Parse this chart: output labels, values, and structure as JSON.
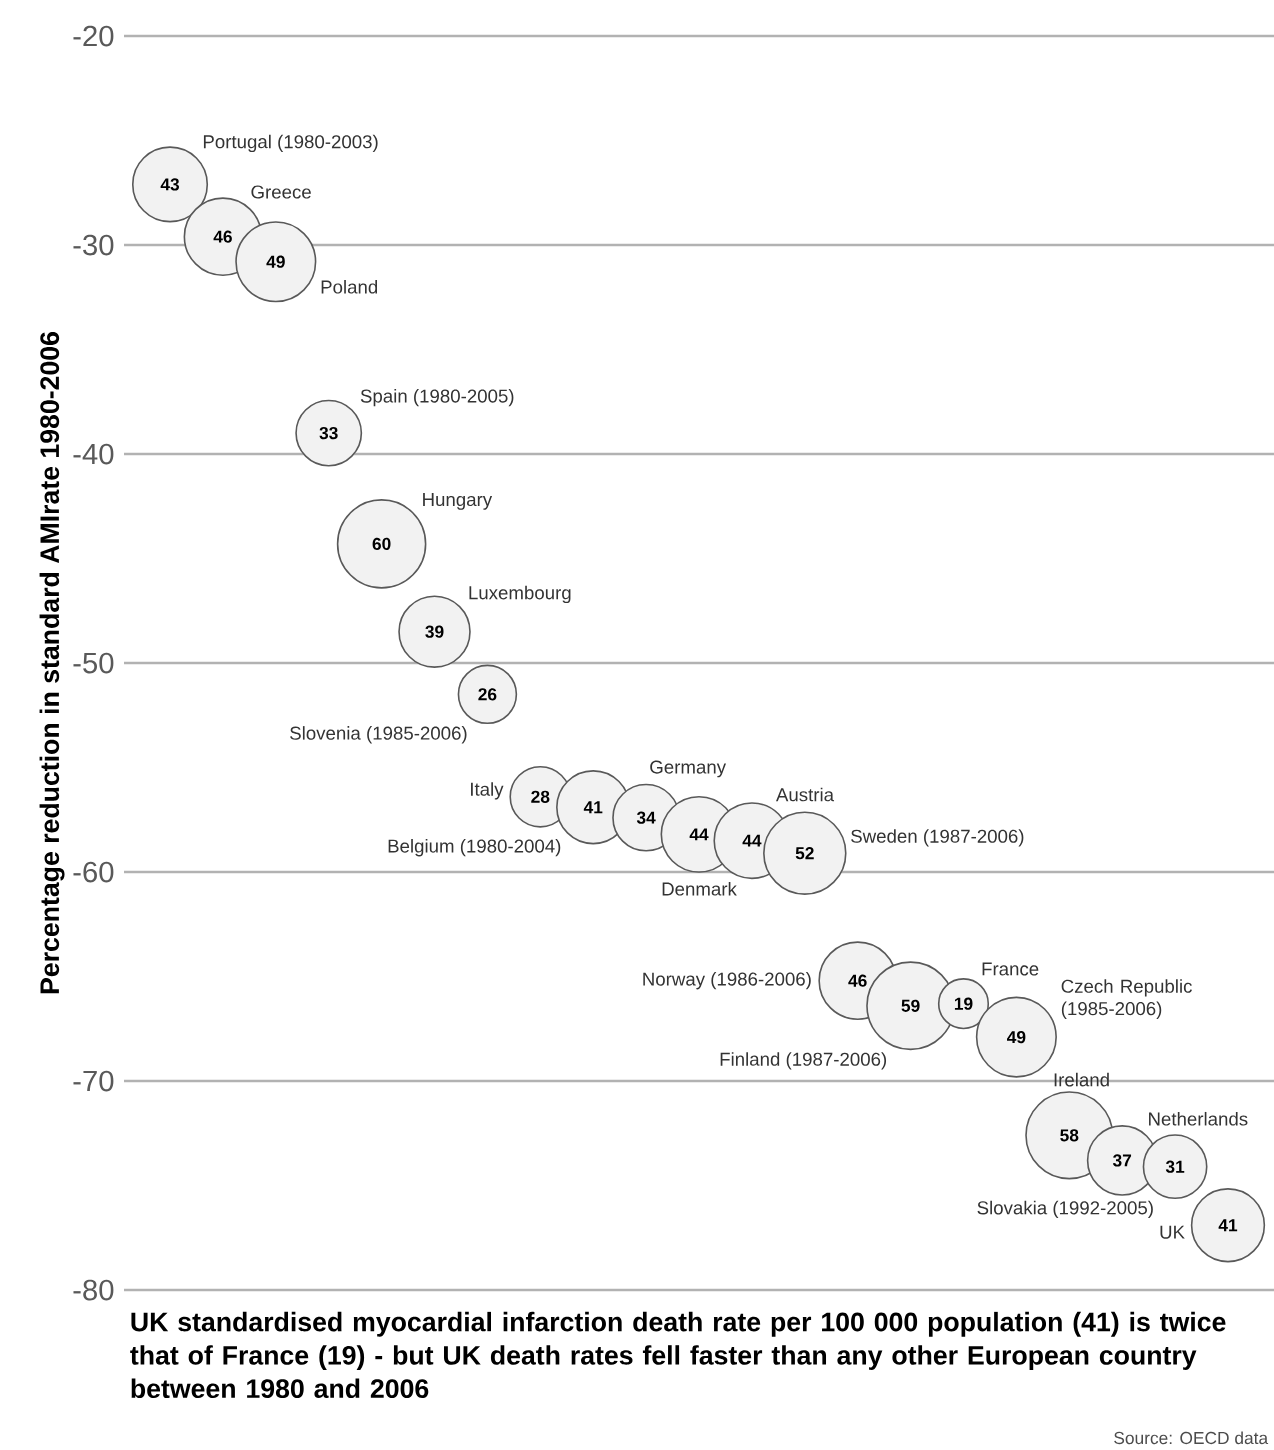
{
  "chart_data": {
    "type": "bubble",
    "title": "UK standardised myocardial infarction death rate per 100 000 population (41) is twice that of France (19) - but UK death rates fell faster than any other European country between 1980 and 2006",
    "ylabel": "Percentage reduction in standard AMIrate 1980-2006",
    "categories": [
      null,
      null,
      null,
      null,
      null,
      null,
      null,
      null,
      null,
      null,
      null,
      null,
      null,
      null,
      null,
      null,
      null,
      null,
      null,
      null,
      null
    ],
    "color": "#f2f2f2",
    "series": [
      {
        "name": "Portugal (1980-2003)",
        "values": [
          -27.1,
          null,
          null,
          null,
          null,
          null,
          null,
          null,
          null,
          null,
          null,
          null,
          null,
          null,
          null,
          null,
          null,
          null,
          null,
          null,
          null
        ],
        "sizes": [
          0.717,
          null,
          null,
          null,
          null,
          null,
          null,
          null,
          null,
          null,
          null,
          null,
          null,
          null,
          null,
          null,
          null,
          null,
          null,
          null,
          null
        ]
      },
      {
        "name": "Greece",
        "values": [
          null,
          -29.6,
          null,
          null,
          null,
          null,
          null,
          null,
          null,
          null,
          null,
          null,
          null,
          null,
          null,
          null,
          null,
          null,
          null,
          null,
          null
        ],
        "sizes": [
          null,
          0.767,
          null,
          null,
          null,
          null,
          null,
          null,
          null,
          null,
          null,
          null,
          null,
          null,
          null,
          null,
          null,
          null,
          null,
          null,
          null
        ]
      },
      {
        "name": "Poland",
        "values": [
          null,
          null,
          -30.8,
          null,
          null,
          null,
          null,
          null,
          null,
          null,
          null,
          null,
          null,
          null,
          null,
          null,
          null,
          null,
          null,
          null,
          null
        ],
        "sizes": [
          null,
          null,
          0.817,
          null,
          null,
          null,
          null,
          null,
          null,
          null,
          null,
          null,
          null,
          null,
          null,
          null,
          null,
          null,
          null,
          null,
          null
        ]
      },
      {
        "name": "Spain (1980-2005)",
        "values": [
          null,
          null,
          null,
          -39.0,
          null,
          null,
          null,
          null,
          null,
          null,
          null,
          null,
          null,
          null,
          null,
          null,
          null,
          null,
          null,
          null,
          null
        ],
        "sizes": [
          null,
          null,
          null,
          0.55,
          null,
          null,
          null,
          null,
          null,
          null,
          null,
          null,
          null,
          null,
          null,
          null,
          null,
          null,
          null,
          null,
          null
        ]
      },
      {
        "name": "Hungary",
        "values": [
          null,
          null,
          null,
          null,
          -44.3,
          null,
          null,
          null,
          null,
          null,
          null,
          null,
          null,
          null,
          null,
          null,
          null,
          null,
          null,
          null,
          null
        ],
        "sizes": [
          null,
          null,
          null,
          null,
          1,
          null,
          null,
          null,
          null,
          null,
          null,
          null,
          null,
          null,
          null,
          null,
          null,
          null,
          null,
          null,
          null
        ]
      },
      {
        "name": "Luxembourg",
        "values": [
          null,
          null,
          null,
          null,
          null,
          -48.5,
          null,
          null,
          null,
          null,
          null,
          null,
          null,
          null,
          null,
          null,
          null,
          null,
          null,
          null,
          null
        ],
        "sizes": [
          null,
          null,
          null,
          null,
          null,
          0.65,
          null,
          null,
          null,
          null,
          null,
          null,
          null,
          null,
          null,
          null,
          null,
          null,
          null,
          null,
          null
        ]
      },
      {
        "name": "Slovenia (1985-2006)",
        "values": [
          null,
          null,
          null,
          null,
          null,
          null,
          -51.5,
          null,
          null,
          null,
          null,
          null,
          null,
          null,
          null,
          null,
          null,
          null,
          null,
          null,
          null
        ],
        "sizes": [
          null,
          null,
          null,
          null,
          null,
          null,
          0.433,
          null,
          null,
          null,
          null,
          null,
          null,
          null,
          null,
          null,
          null,
          null,
          null,
          null,
          null
        ]
      },
      {
        "name": "Italy",
        "values": [
          null,
          null,
          null,
          null,
          null,
          null,
          null,
          -56.4,
          null,
          null,
          null,
          null,
          null,
          null,
          null,
          null,
          null,
          null,
          null,
          null,
          null
        ],
        "sizes": [
          null,
          null,
          null,
          null,
          null,
          null,
          null,
          0.467,
          null,
          null,
          null,
          null,
          null,
          null,
          null,
          null,
          null,
          null,
          null,
          null,
          null
        ]
      },
      {
        "name": "Belgium (1980-2004)",
        "values": [
          null,
          null,
          null,
          null,
          null,
          null,
          null,
          null,
          -56.9,
          null,
          null,
          null,
          null,
          null,
          null,
          null,
          null,
          null,
          null,
          null,
          null
        ],
        "sizes": [
          null,
          null,
          null,
          null,
          null,
          null,
          null,
          null,
          0.683,
          null,
          null,
          null,
          null,
          null,
          null,
          null,
          null,
          null,
          null,
          null,
          null
        ]
      },
      {
        "name": "Germany",
        "values": [
          null,
          null,
          null,
          null,
          null,
          null,
          null,
          null,
          null,
          -57.4,
          null,
          null,
          null,
          null,
          null,
          null,
          null,
          null,
          null,
          null,
          null
        ],
        "sizes": [
          null,
          null,
          null,
          null,
          null,
          null,
          null,
          null,
          null,
          0.567,
          null,
          null,
          null,
          null,
          null,
          null,
          null,
          null,
          null,
          null,
          null
        ]
      },
      {
        "name": "Denmark",
        "values": [
          null,
          null,
          null,
          null,
          null,
          null,
          null,
          null,
          null,
          null,
          -58.2,
          null,
          null,
          null,
          null,
          null,
          null,
          null,
          null,
          null,
          null
        ],
        "sizes": [
          null,
          null,
          null,
          null,
          null,
          null,
          null,
          null,
          null,
          null,
          0.733,
          null,
          null,
          null,
          null,
          null,
          null,
          null,
          null,
          null,
          null
        ]
      },
      {
        "name": "Austria",
        "values": [
          null,
          null,
          null,
          null,
          null,
          null,
          null,
          null,
          null,
          null,
          null,
          -58.5,
          null,
          null,
          null,
          null,
          null,
          null,
          null,
          null,
          null
        ],
        "sizes": [
          null,
          null,
          null,
          null,
          null,
          null,
          null,
          null,
          null,
          null,
          null,
          0.733,
          null,
          null,
          null,
          null,
          null,
          null,
          null,
          null,
          null
        ]
      },
      {
        "name": "Sweden (1987-2006)",
        "values": [
          null,
          null,
          null,
          null,
          null,
          null,
          null,
          null,
          null,
          null,
          null,
          null,
          -59.1,
          null,
          null,
          null,
          null,
          null,
          null,
          null,
          null
        ],
        "sizes": [
          null,
          null,
          null,
          null,
          null,
          null,
          null,
          null,
          null,
          null,
          null,
          null,
          0.867,
          null,
          null,
          null,
          null,
          null,
          null,
          null,
          null
        ]
      },
      {
        "name": "Norway (1986-2006)",
        "values": [
          null,
          null,
          null,
          null,
          null,
          null,
          null,
          null,
          null,
          null,
          null,
          null,
          null,
          -65.2,
          null,
          null,
          null,
          null,
          null,
          null,
          null
        ],
        "sizes": [
          null,
          null,
          null,
          null,
          null,
          null,
          null,
          null,
          null,
          null,
          null,
          null,
          null,
          0.767,
          null,
          null,
          null,
          null,
          null,
          null,
          null
        ]
      },
      {
        "name": "Finland (1987-2006)",
        "values": [
          null,
          null,
          null,
          null,
          null,
          null,
          null,
          null,
          null,
          null,
          null,
          null,
          null,
          null,
          -66.4,
          null,
          null,
          null,
          null,
          null,
          null
        ],
        "sizes": [
          null,
          null,
          null,
          null,
          null,
          null,
          null,
          null,
          null,
          null,
          null,
          null,
          null,
          null,
          0.983,
          null,
          null,
          null,
          null,
          null,
          null
        ]
      },
      {
        "name": "France",
        "values": [
          null,
          null,
          null,
          null,
          null,
          null,
          null,
          null,
          null,
          null,
          null,
          null,
          null,
          null,
          null,
          -66.3,
          null,
          null,
          null,
          null,
          null
        ],
        "sizes": [
          null,
          null,
          null,
          null,
          null,
          null,
          null,
          null,
          null,
          null,
          null,
          null,
          null,
          null,
          null,
          0.317,
          null,
          null,
          null,
          null,
          null
        ]
      },
      {
        "name": "Czech Republic (1985-2006)",
        "values": [
          null,
          null,
          null,
          null,
          null,
          null,
          null,
          null,
          null,
          null,
          null,
          null,
          null,
          null,
          null,
          null,
          -67.9,
          null,
          null,
          null,
          null
        ],
        "sizes": [
          null,
          null,
          null,
          null,
          null,
          null,
          null,
          null,
          null,
          null,
          null,
          null,
          null,
          null,
          null,
          null,
          0.817,
          null,
          null,
          null,
          null
        ]
      },
      {
        "name": "Ireland",
        "values": [
          null,
          null,
          null,
          null,
          null,
          null,
          null,
          null,
          null,
          null,
          null,
          null,
          null,
          null,
          null,
          null,
          null,
          -72.6,
          null,
          null,
          null
        ],
        "sizes": [
          null,
          null,
          null,
          null,
          null,
          null,
          null,
          null,
          null,
          null,
          null,
          null,
          null,
          null,
          null,
          null,
          null,
          0.967,
          null,
          null,
          null
        ]
      },
      {
        "name": "Netherlands",
        "values": [
          null,
          null,
          null,
          null,
          null,
          null,
          null,
          null,
          null,
          null,
          null,
          null,
          null,
          null,
          null,
          null,
          null,
          null,
          -73.8,
          null,
          null
        ],
        "sizes": [
          null,
          null,
          null,
          null,
          null,
          null,
          null,
          null,
          null,
          null,
          null,
          null,
          null,
          null,
          null,
          null,
          null,
          null,
          0.617,
          null,
          null
        ]
      },
      {
        "name": "Slovakia (1992-2005)",
        "values": [
          null,
          null,
          null,
          null,
          null,
          null,
          null,
          null,
          null,
          null,
          null,
          null,
          null,
          null,
          null,
          null,
          null,
          null,
          null,
          -74.1,
          null
        ],
        "sizes": [
          null,
          null,
          null,
          null,
          null,
          null,
          null,
          null,
          null,
          null,
          null,
          null,
          null,
          null,
          null,
          null,
          null,
          null,
          null,
          0.517,
          null
        ]
      },
      {
        "name": "UK",
        "values": [
          null,
          null,
          null,
          null,
          null,
          null,
          null,
          null,
          null,
          null,
          null,
          null,
          null,
          null,
          null,
          null,
          null,
          null,
          null,
          null,
          -76.9
        ],
        "sizes": [
          null,
          null,
          null,
          null,
          null,
          null,
          null,
          null,
          null,
          null,
          null,
          null,
          null,
          null,
          null,
          null,
          null,
          null,
          null,
          null,
          0.683
        ]
      }
    ],
    "ylim": [
      -80,
      -20
    ],
    "yticks": [
      -80,
      -70,
      -60,
      -50,
      -40,
      -30,
      -20
    ],
    "grid": "y",
    "annotations": [
      {
        "text": "43",
        "y": -27.1
      },
      {
        "text": "46",
        "y": -29.6
      },
      {
        "text": "49",
        "y": -30.8
      },
      {
        "text": "33",
        "y": -39.0
      },
      {
        "text": "60",
        "y": -44.3
      },
      {
        "text": "39",
        "y": -48.5
      },
      {
        "text": "26",
        "y": -51.5
      },
      {
        "text": "28",
        "y": -56.4
      },
      {
        "text": "41",
        "y": -56.9
      },
      {
        "text": "34",
        "y": -57.4
      },
      {
        "text": "44",
        "y": -58.2
      },
      {
        "text": "44",
        "y": -58.5
      },
      {
        "text": "52",
        "y": -59.1
      },
      {
        "text": "46",
        "y": -65.2
      },
      {
        "text": "59",
        "y": -66.4
      },
      {
        "text": "19",
        "y": -66.3
      },
      {
        "text": "49",
        "y": -67.9
      },
      {
        "text": "58",
        "y": -72.6
      },
      {
        "text": "37",
        "y": -73.8
      },
      {
        "text": "31",
        "y": -74.1
      },
      {
        "text": "41",
        "y": -76.9
      },
      "Source: OECD data"
    ]
  }
}
